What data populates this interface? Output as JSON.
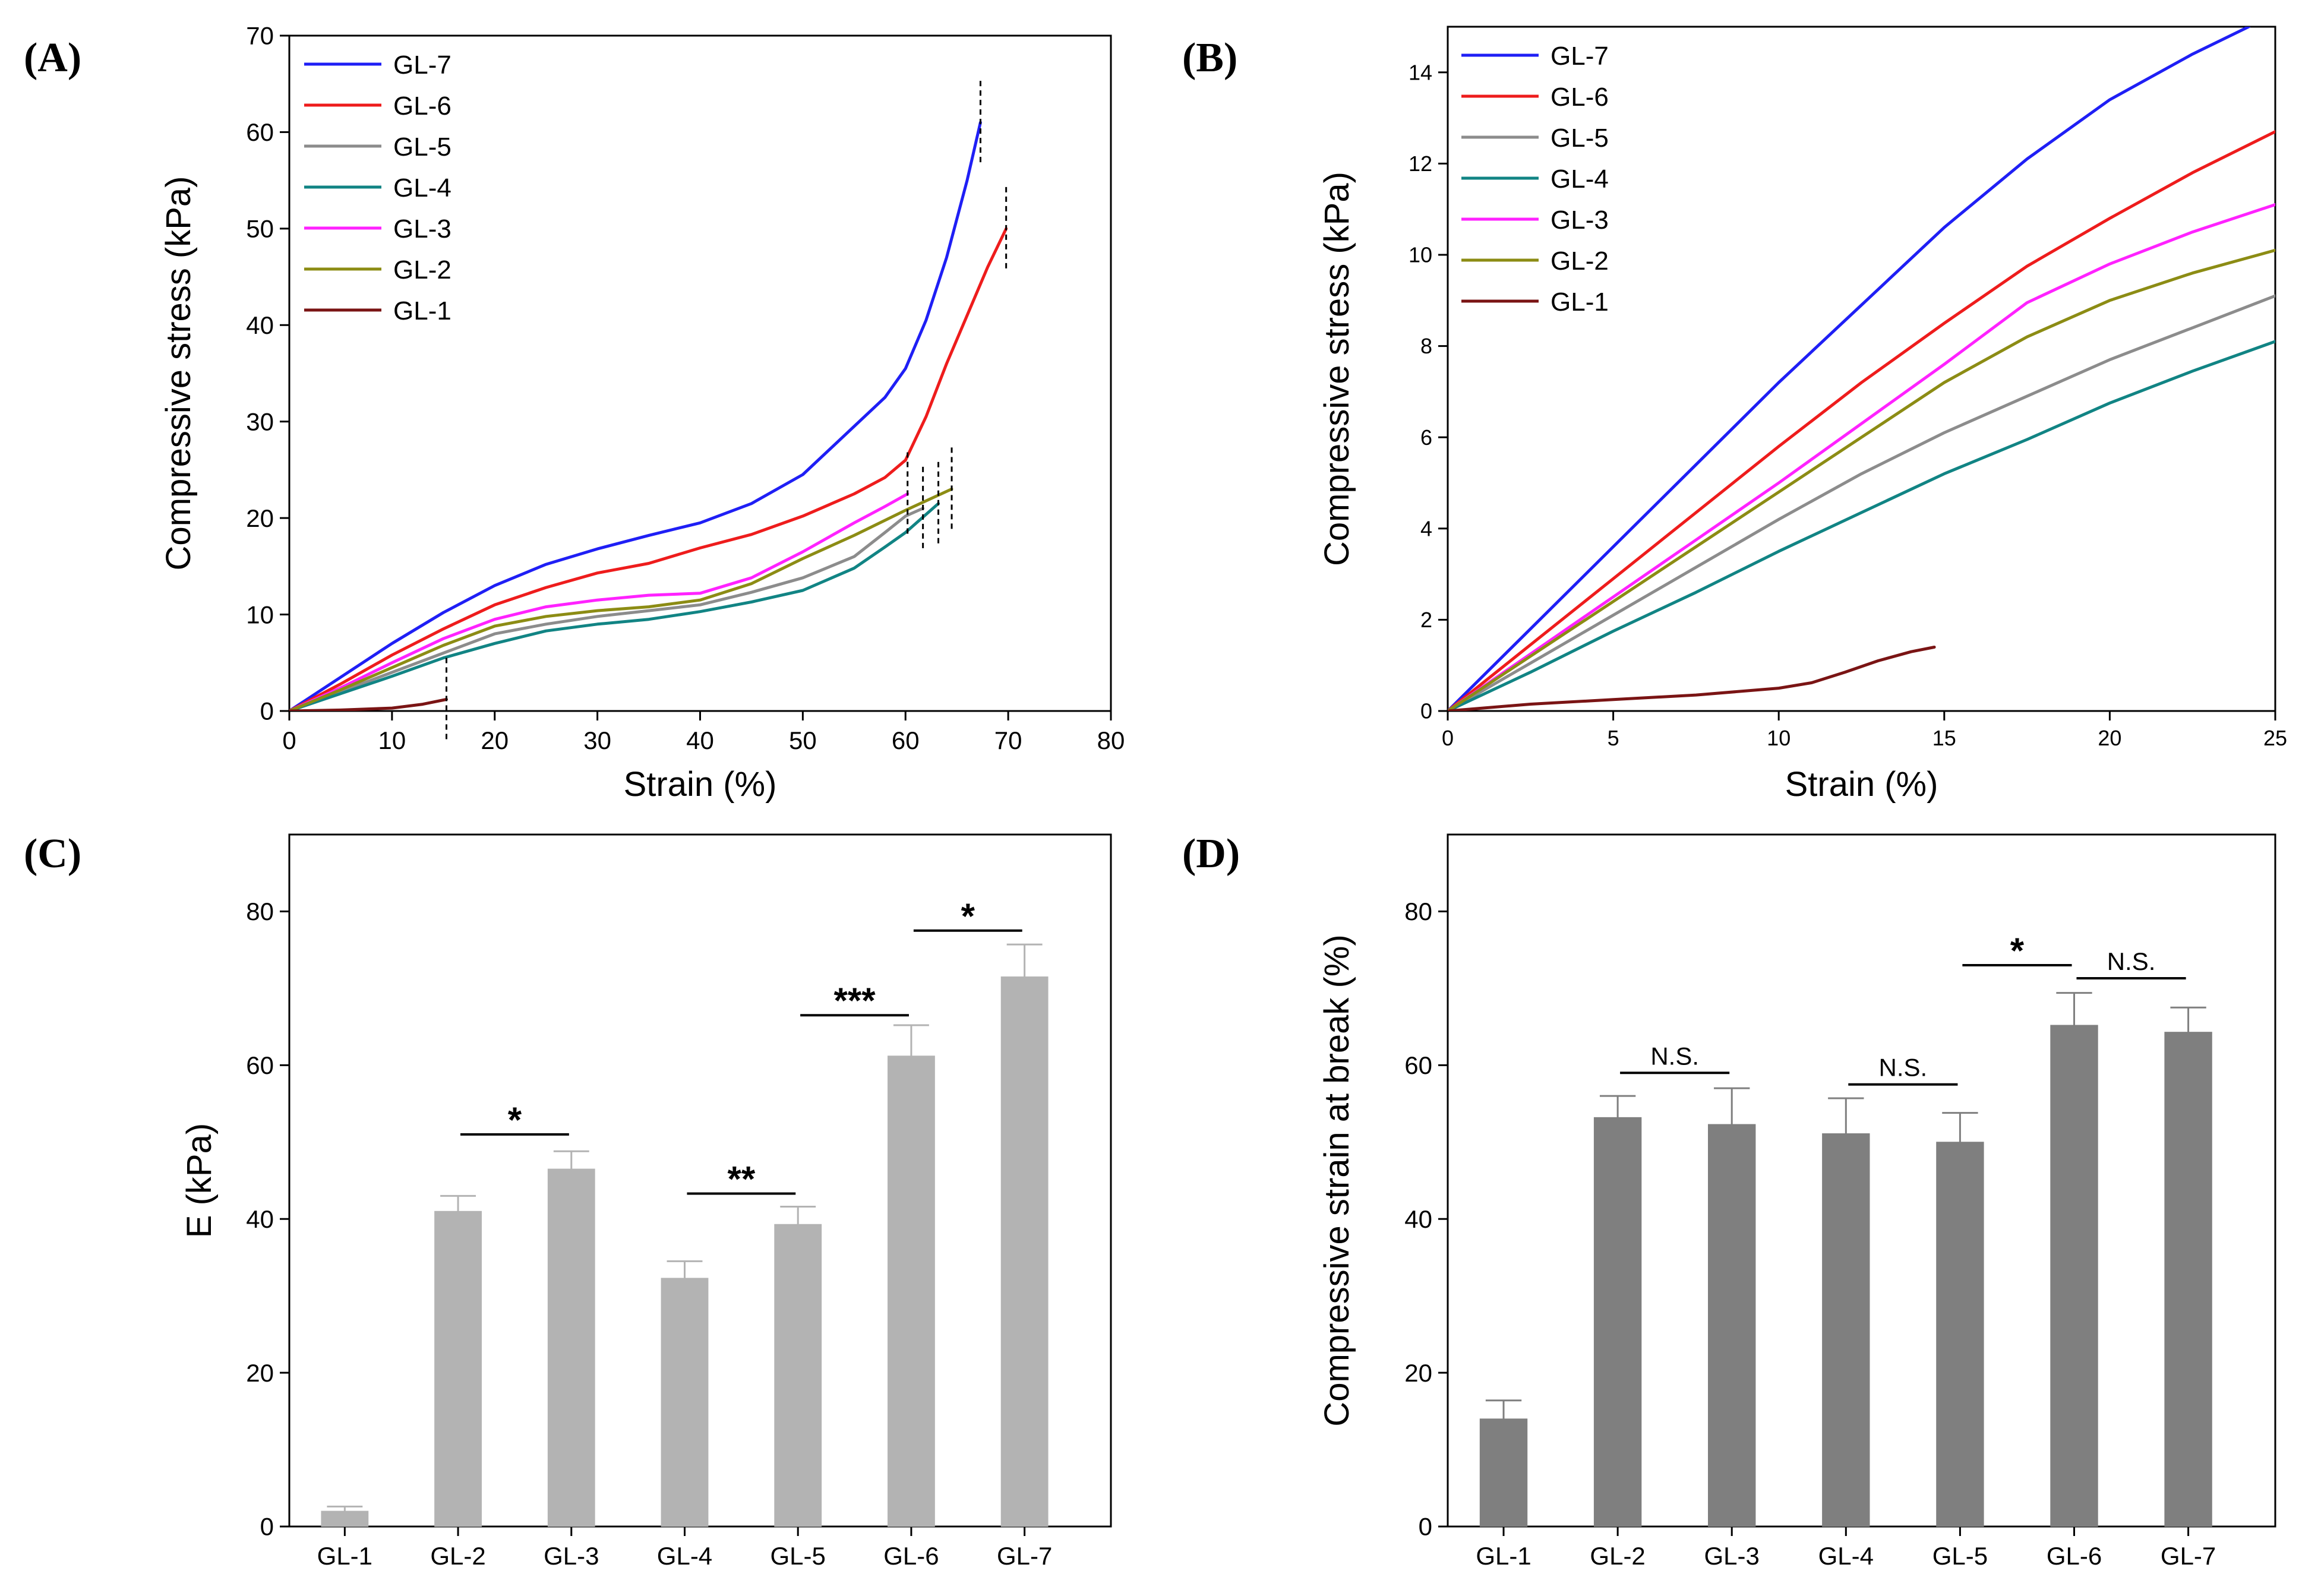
{
  "colors": {
    "GL-7": "#1f1ff5",
    "GL-6": "#ee1c1c",
    "GL-5": "#8c8c8c",
    "GL-4": "#118484",
    "GL-3": "#ff22ff",
    "GL-2": "#8c8c14",
    "GL-1": "#7a1414",
    "barC": "#b3b3b3",
    "barD": "#7f7f7f",
    "axis": "#000000"
  },
  "chart_data": [
    {
      "type": "line",
      "panel_label": "(A)",
      "xlabel": "Strain (%)",
      "ylabel": "Compressive stress (kPa)",
      "xlim": [
        0,
        80
      ],
      "ylim": [
        0,
        70
      ],
      "xticks": [
        0,
        10,
        20,
        30,
        40,
        50,
        60,
        70,
        80
      ],
      "yticks": [
        0,
        10,
        20,
        30,
        40,
        50,
        60,
        70
      ],
      "legend_position": "top-left",
      "break_markers": [
        15.3,
        60.2,
        61.7,
        63.2,
        64.5,
        67.3,
        69.8
      ],
      "series": [
        {
          "name": "GL-7",
          "x": [
            0,
            5,
            10,
            15,
            20,
            25,
            30,
            35,
            40,
            45,
            50,
            55,
            58,
            60,
            62,
            64,
            66,
            67.3
          ],
          "y": [
            0,
            3.5,
            7,
            10.2,
            13,
            15.2,
            16.8,
            18.2,
            19.5,
            21.5,
            24.5,
            29.5,
            32.5,
            35.5,
            40.5,
            47,
            55,
            61
          ]
        },
        {
          "name": "GL-6",
          "x": [
            0,
            5,
            10,
            15,
            20,
            25,
            30,
            35,
            40,
            45,
            50,
            55,
            58,
            60,
            62,
            64,
            66,
            68,
            69.8
          ],
          "y": [
            0,
            2.8,
            5.8,
            8.5,
            11,
            12.8,
            14.3,
            15.3,
            16.9,
            18.3,
            20.2,
            22.5,
            24.2,
            26,
            30.5,
            36,
            41,
            46,
            50
          ]
        },
        {
          "name": "GL-5",
          "x": [
            0,
            5,
            10,
            15,
            20,
            25,
            30,
            35,
            40,
            45,
            50,
            55,
            58,
            60,
            61.7
          ],
          "y": [
            0,
            2,
            4,
            6,
            8,
            9,
            9.8,
            10.4,
            11,
            12.3,
            13.8,
            16,
            18.5,
            20.2,
            21
          ]
        },
        {
          "name": "GL-4",
          "x": [
            0,
            5,
            10,
            15,
            20,
            25,
            30,
            35,
            40,
            45,
            50,
            55,
            58,
            60,
            63.2
          ],
          "y": [
            0,
            1.8,
            3.6,
            5.5,
            7,
            8.3,
            9,
            9.5,
            10.3,
            11.3,
            12.5,
            14.8,
            17,
            18.5,
            21.5
          ]
        },
        {
          "name": "GL-3",
          "x": [
            0,
            5,
            10,
            15,
            20,
            25,
            30,
            35,
            40,
            45,
            50,
            55,
            58,
            60.2
          ],
          "y": [
            0,
            2.4,
            5,
            7.5,
            9.5,
            10.8,
            11.5,
            12,
            12.2,
            13.8,
            16.5,
            19.5,
            21.2,
            22.5
          ]
        },
        {
          "name": "GL-2",
          "x": [
            0,
            5,
            10,
            15,
            20,
            25,
            30,
            35,
            40,
            45,
            50,
            55,
            60,
            64.5
          ],
          "y": [
            0,
            2.2,
            4.5,
            6.8,
            8.8,
            9.8,
            10.4,
            10.8,
            11.5,
            13.2,
            15.8,
            18.2,
            20.8,
            23
          ]
        },
        {
          "name": "GL-1",
          "x": [
            0,
            5,
            10,
            13,
            15.3
          ],
          "y": [
            0,
            0.1,
            0.3,
            0.7,
            1.2
          ]
        }
      ]
    },
    {
      "type": "line",
      "panel_label": "(B)",
      "xlabel": "Strain (%)",
      "ylabel": "Compressive stress (kPa)",
      "xlim": [
        0,
        25
      ],
      "ylim": [
        0,
        15
      ],
      "xticks": [
        0,
        5,
        10,
        15,
        20,
        25
      ],
      "yticks": [
        0,
        2,
        4,
        6,
        8,
        10,
        12,
        14
      ],
      "legend_position": "top-left",
      "series": [
        {
          "name": "GL-7",
          "x": [
            0,
            2.5,
            5,
            7.5,
            10,
            12.5,
            15,
            17.5,
            20,
            22.5,
            24.2
          ],
          "y": [
            0,
            1.8,
            3.6,
            5.4,
            7.2,
            8.9,
            10.6,
            12.1,
            13.4,
            14.4,
            15
          ]
        },
        {
          "name": "GL-6",
          "x": [
            0,
            2.5,
            5,
            7.5,
            10,
            12.5,
            15,
            17.5,
            20,
            22.5,
            25
          ],
          "y": [
            0,
            1.45,
            2.9,
            4.35,
            5.8,
            7.2,
            8.5,
            9.75,
            10.8,
            11.8,
            12.7
          ]
        },
        {
          "name": "GL-5",
          "x": [
            0,
            2.5,
            5,
            7.5,
            10,
            12.5,
            15,
            17.5,
            20,
            22.5,
            25
          ],
          "y": [
            0,
            1.05,
            2.1,
            3.15,
            4.2,
            5.2,
            6.1,
            6.9,
            7.7,
            8.4,
            9.1
          ]
        },
        {
          "name": "GL-4",
          "x": [
            0,
            2.5,
            5,
            7.5,
            10,
            12.5,
            15,
            17.5,
            20,
            22.5,
            25
          ],
          "y": [
            0,
            0.85,
            1.75,
            2.6,
            3.5,
            4.35,
            5.2,
            5.95,
            6.75,
            7.45,
            8.1
          ]
        },
        {
          "name": "GL-3",
          "x": [
            0,
            2.5,
            5,
            7.5,
            10,
            12.5,
            15,
            17.5,
            20,
            22.5,
            25
          ],
          "y": [
            0,
            1.25,
            2.5,
            3.75,
            5,
            6.3,
            7.6,
            8.95,
            9.8,
            10.5,
            11.1
          ]
        },
        {
          "name": "GL-2",
          "x": [
            0,
            2.5,
            5,
            7.5,
            10,
            12.5,
            15,
            17.5,
            20,
            22.5,
            25
          ],
          "y": [
            0,
            1.2,
            2.4,
            3.6,
            4.8,
            6,
            7.2,
            8.2,
            9,
            9.6,
            10.1
          ]
        },
        {
          "name": "GL-1",
          "x": [
            0,
            2.5,
            5,
            7.5,
            10,
            11,
            12,
            13,
            14,
            14.7
          ],
          "y": [
            0,
            0.15,
            0.25,
            0.35,
            0.5,
            0.62,
            0.85,
            1.1,
            1.3,
            1.4
          ]
        }
      ]
    },
    {
      "type": "bar",
      "panel_label": "(C)",
      "xlabel": "",
      "ylabel": "E (kPa)",
      "ylim": [
        0,
        90
      ],
      "yticks": [
        0,
        20,
        40,
        60,
        80
      ],
      "categories": [
        "GL-1",
        "GL-2",
        "GL-3",
        "GL-4",
        "GL-5",
        "GL-6",
        "GL-7"
      ],
      "values": [
        2,
        41,
        46.5,
        32.3,
        39.3,
        61.2,
        71.5
      ],
      "errors": [
        0.6,
        2,
        2.3,
        2.2,
        2.3,
        4,
        4.2
      ],
      "significance": [
        {
          "from": 1,
          "to": 2,
          "label": "*",
          "y": 51
        },
        {
          "from": 3,
          "to": 4,
          "label": "**",
          "y": 43.3
        },
        {
          "from": 4,
          "to": 5,
          "label": "***",
          "y": 66.5
        },
        {
          "from": 5,
          "to": 6,
          "label": "*",
          "y": 77.5
        }
      ]
    },
    {
      "type": "bar",
      "panel_label": "(D)",
      "xlabel": "",
      "ylabel": "Compressive strain at break (%)",
      "ylim": [
        0,
        90
      ],
      "yticks": [
        0,
        20,
        40,
        60,
        80
      ],
      "categories": [
        "GL-1",
        "GL-2",
        "GL-3",
        "GL-4",
        "GL-5",
        "GL-6",
        "GL-7"
      ],
      "values": [
        14,
        53.2,
        52.3,
        51.1,
        50,
        65.2,
        64.3
      ],
      "errors": [
        2.4,
        2.8,
        4.7,
        4.6,
        3.8,
        4.2,
        3.2
      ],
      "significance": [
        {
          "from": 1,
          "to": 2,
          "label": "N.S.",
          "y": 59
        },
        {
          "from": 3,
          "to": 4,
          "label": "N.S.",
          "y": 57.5
        },
        {
          "from": 4,
          "to": 5,
          "label": "*",
          "y": 73
        },
        {
          "from": 5,
          "to": 6,
          "label": "N.S.",
          "y": 71.3
        }
      ]
    }
  ]
}
